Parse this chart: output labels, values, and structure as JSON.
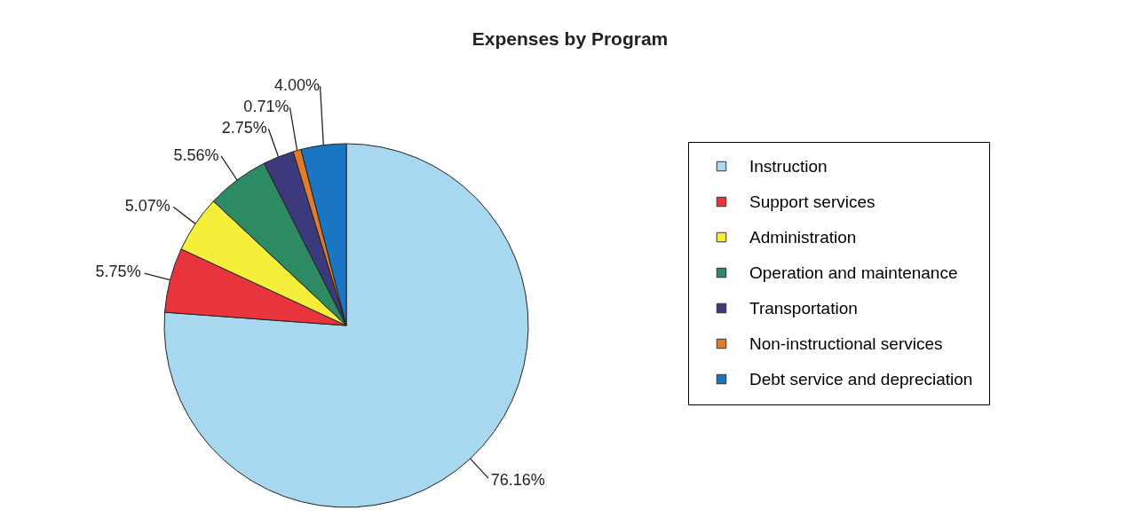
{
  "chart_data": {
    "type": "pie",
    "title": "Expenses by Program",
    "categories": [
      "Instruction",
      "Support services",
      "Administration",
      "Operation and maintenance",
      "Transportation",
      "Non-instructional services",
      "Debt service and depreciation"
    ],
    "values": [
      76.16,
      5.75,
      5.07,
      5.56,
      2.75,
      0.71,
      4.0
    ],
    "value_labels": [
      "76.16%",
      "5.75%",
      "5.07%",
      "5.56%",
      "2.75%",
      "0.71%",
      "4.00%"
    ],
    "colors": [
      "#a8d8f0",
      "#e8343c",
      "#f5ee3a",
      "#2e8a62",
      "#3c3a7c",
      "#e07c2c",
      "#1a76c0"
    ],
    "legend": "right"
  }
}
